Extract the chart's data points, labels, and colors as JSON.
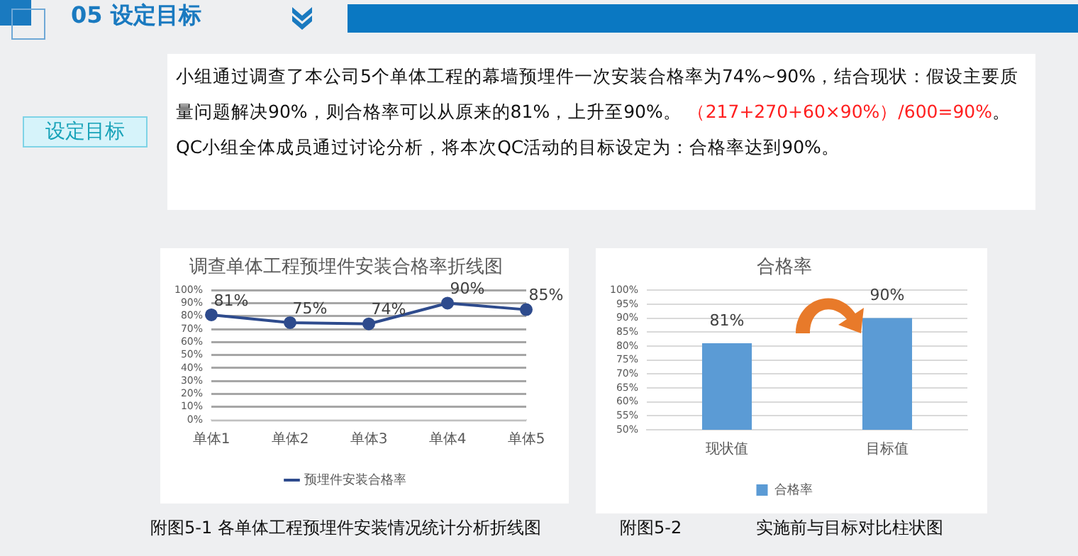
{
  "chart_data": [
    {
      "type": "line",
      "title": "调查单体工程预埋件安装合格率折线图",
      "annotations": [
        "05 设定目标",
        "设定目标",
        "小组通过调查了本公司5个单体工程的幕墙预埋件一次安装合格率为74%~90%，结合现状：假设主要质量问题解决90%，则合格率可以从原来的81%，上升至90%。",
        "（217+270+60×90%）/600=90%",
        "。",
        "QC小组全体成员通过讨论分析，将本次QC活动的目标设定为：合格率达到90%。",
        "附图5-1  各单体工程预埋件安装情况统计分析折线图"
      ],
      "categories": [
        "单体1",
        "单体2",
        "单体3",
        "单体4",
        "单体5"
      ],
      "series": [
        {
          "name": "预埋件安装合格率",
          "color": "#2e4b8d",
          "values": [
            81,
            75,
            74,
            90,
            85
          ],
          "value_labels": [
            "81%",
            "75%",
            "74%",
            "90%",
            "85%"
          ]
        }
      ],
      "ylim": [
        0,
        100
      ],
      "yticks": [
        {
          "value": 0,
          "label": "0%"
        },
        {
          "value": 10,
          "label": "10%"
        },
        {
          "value": 20,
          "label": "20%"
        },
        {
          "value": 30,
          "label": "30%"
        },
        {
          "value": 40,
          "label": "40%"
        },
        {
          "value": 50,
          "label": "50%"
        },
        {
          "value": 60,
          "label": "60%"
        },
        {
          "value": 70,
          "label": "70%"
        },
        {
          "value": 80,
          "label": "80%"
        },
        {
          "value": 90,
          "label": "90%"
        },
        {
          "value": 100,
          "label": "100%"
        }
      ],
      "grid": "y",
      "legend": "bottom",
      "marker": "circle",
      "line_style": "solid"
    },
    {
      "type": "bar",
      "title": "合格率",
      "annotations": [
        "附图5-2",
        "实施前与目标对比柱状图"
      ],
      "categories": [
        "现状值",
        "目标值"
      ],
      "series": [
        {
          "name": "合格率",
          "color": "#5b9bd5",
          "values": [
            81,
            90
          ],
          "value_labels": [
            "81%",
            "90%"
          ]
        }
      ],
      "ylim": [
        50,
        100
      ],
      "yticks": [
        {
          "value": 50,
          "label": "50%"
        },
        {
          "value": 55,
          "label": "55%"
        },
        {
          "value": 60,
          "label": "60%"
        },
        {
          "value": 65,
          "label": "65%"
        },
        {
          "value": 70,
          "label": "70%"
        },
        {
          "value": 75,
          "label": "75%"
        },
        {
          "value": 80,
          "label": "80%"
        },
        {
          "value": 85,
          "label": "85%"
        },
        {
          "value": 90,
          "label": "90%"
        },
        {
          "value": 95,
          "label": "95%"
        },
        {
          "value": 100,
          "label": "100%"
        }
      ],
      "grid": "y",
      "legend": "bottom"
    }
  ]
}
